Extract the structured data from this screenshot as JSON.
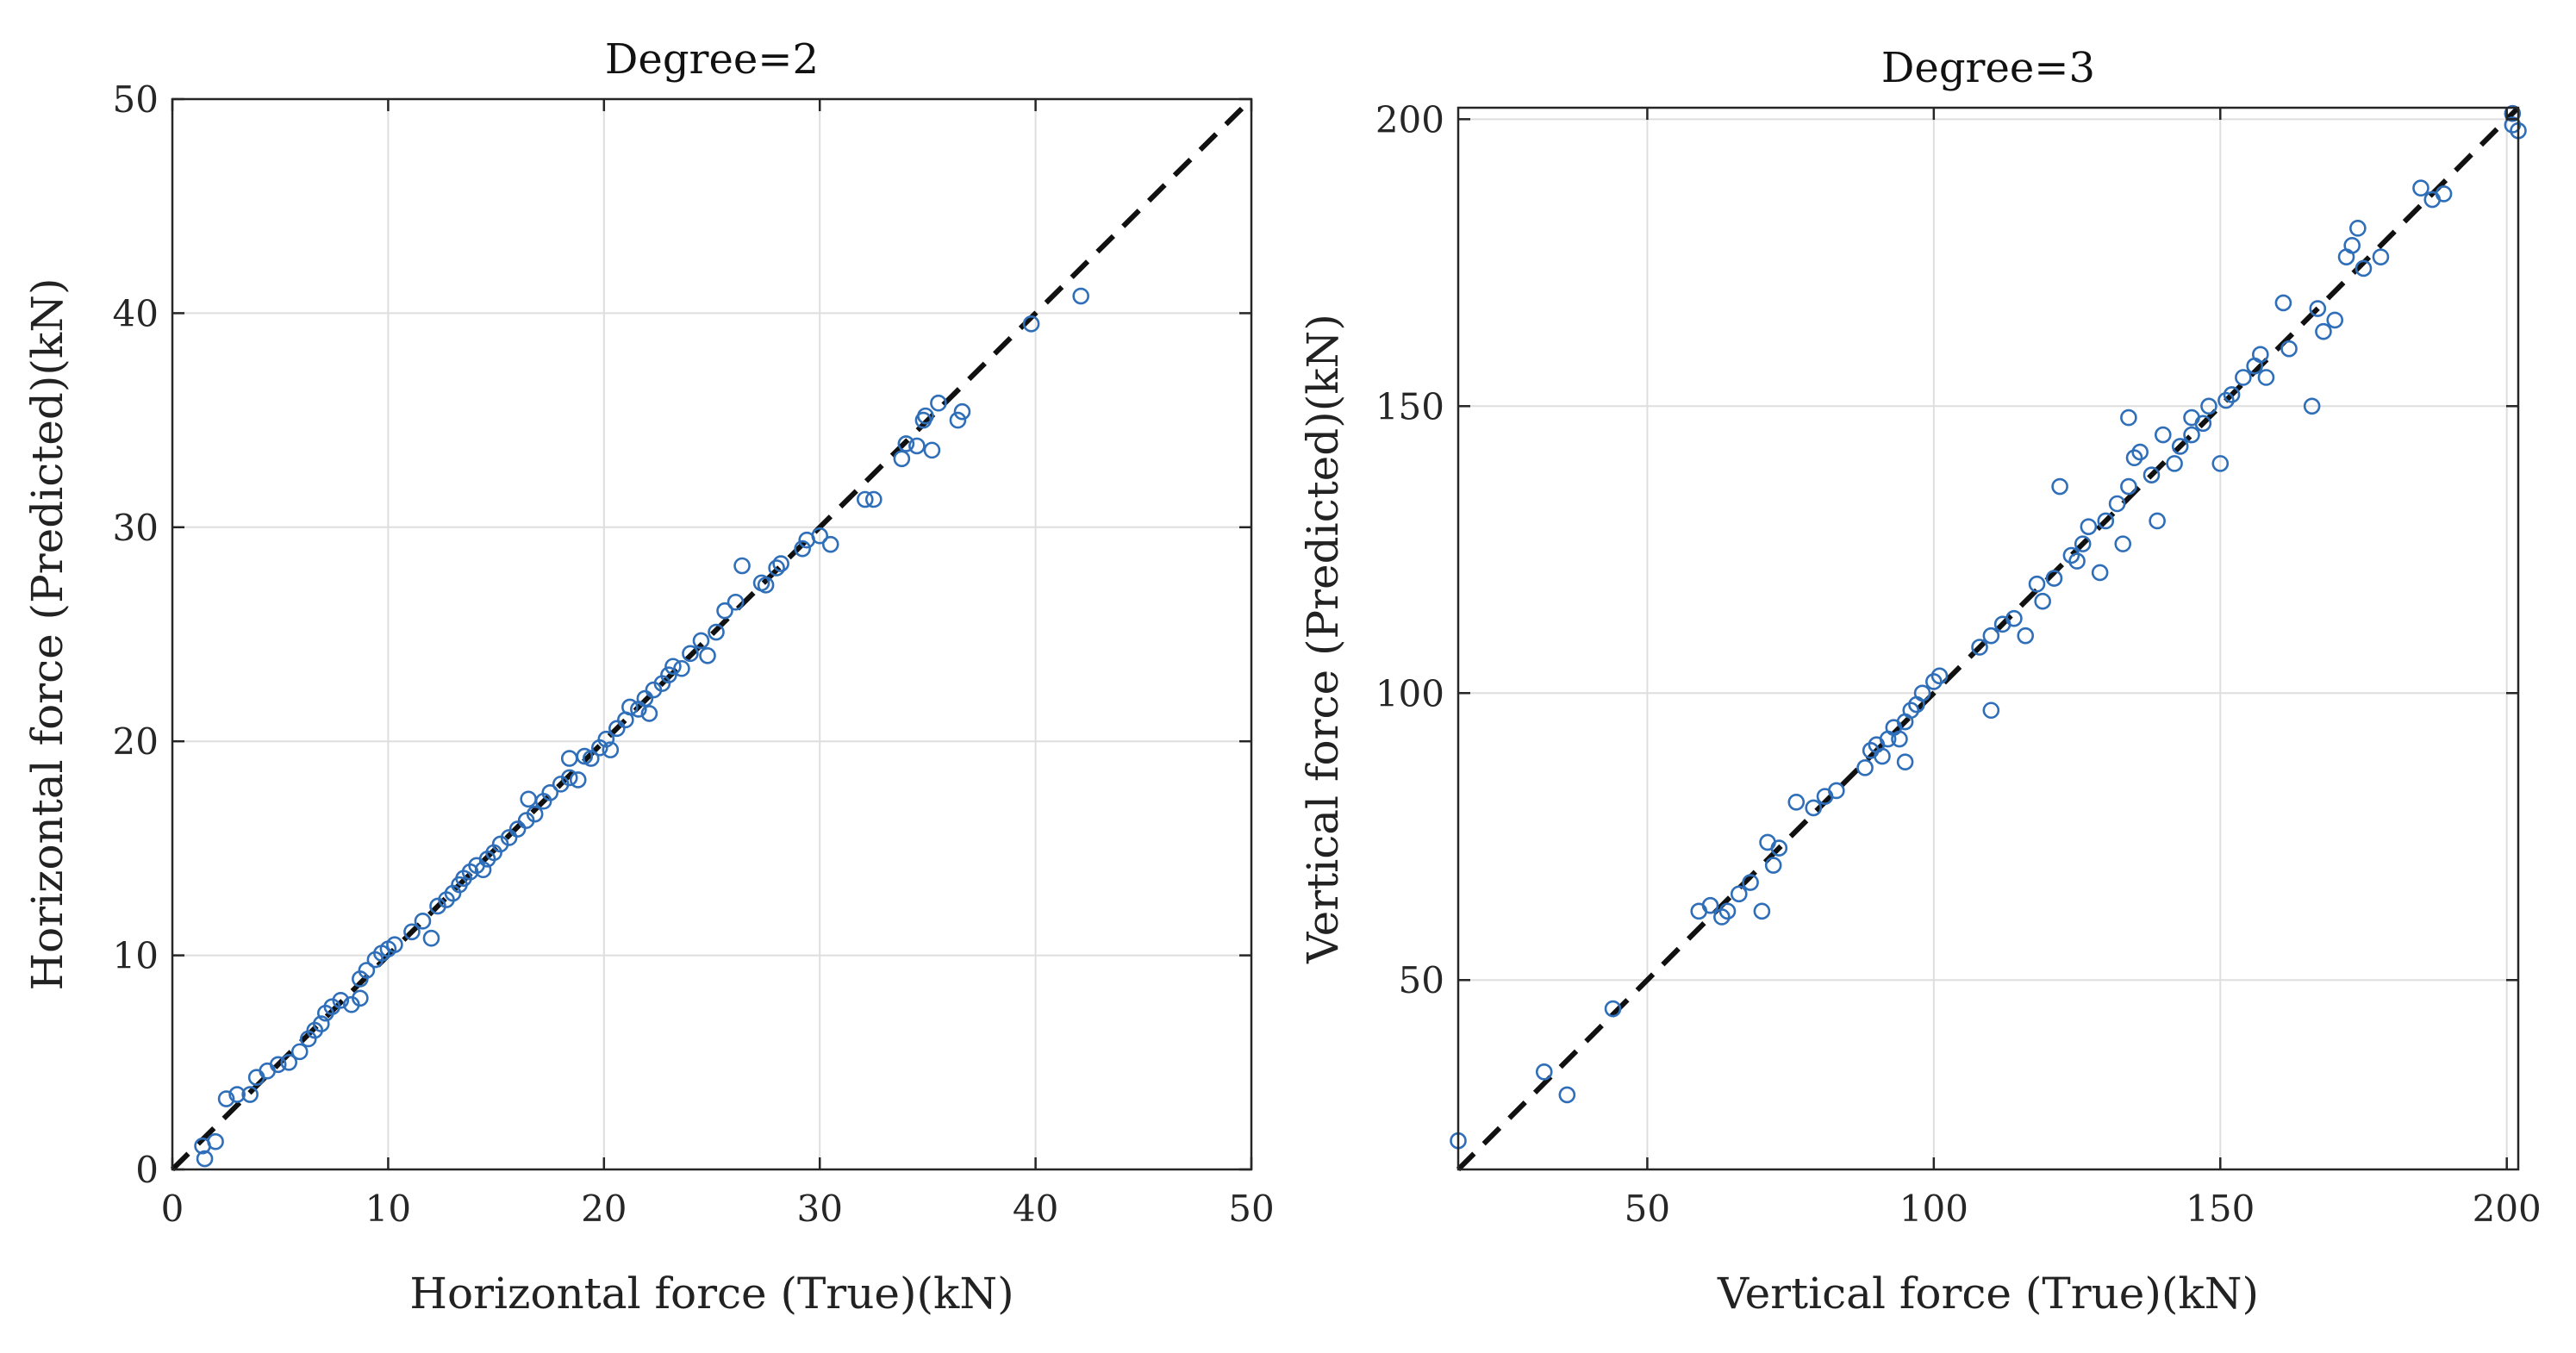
{
  "chart_data": [
    {
      "type": "scatter",
      "title": "Degree=2",
      "xlabel": "Horizontal force (True)(kN)",
      "ylabel": "Horizontal force (Predicted)(kN)",
      "xlim": [
        0,
        50
      ],
      "ylim": [
        0,
        50
      ],
      "xticks": [
        0,
        10,
        20,
        30,
        40,
        50
      ],
      "yticks": [
        0,
        10,
        20,
        30,
        40,
        50
      ],
      "grid": true,
      "reference_line": "y = x (dashed, black)",
      "marker_color": "#2f6eb8",
      "points": [
        [
          1.5,
          0.5
        ],
        [
          1.4,
          1.1
        ],
        [
          2.0,
          1.3
        ],
        [
          2.5,
          3.3
        ],
        [
          3.0,
          3.5
        ],
        [
          3.6,
          3.5
        ],
        [
          3.9,
          4.3
        ],
        [
          4.4,
          4.6
        ],
        [
          4.9,
          4.9
        ],
        [
          5.4,
          5.0
        ],
        [
          5.9,
          5.5
        ],
        [
          6.3,
          6.1
        ],
        [
          6.6,
          6.5
        ],
        [
          6.9,
          6.8
        ],
        [
          7.1,
          7.3
        ],
        [
          7.4,
          7.6
        ],
        [
          7.8,
          7.9
        ],
        [
          8.3,
          7.7
        ],
        [
          8.7,
          8.0
        ],
        [
          8.7,
          8.9
        ],
        [
          9.0,
          9.3
        ],
        [
          9.4,
          9.8
        ],
        [
          9.7,
          10.1
        ],
        [
          10.0,
          10.3
        ],
        [
          10.3,
          10.5
        ],
        [
          11.1,
          11.1
        ],
        [
          11.6,
          11.6
        ],
        [
          12.0,
          10.8
        ],
        [
          12.3,
          12.3
        ],
        [
          12.7,
          12.6
        ],
        [
          13.0,
          12.9
        ],
        [
          13.3,
          13.3
        ],
        [
          13.5,
          13.6
        ],
        [
          13.8,
          13.9
        ],
        [
          14.1,
          14.2
        ],
        [
          14.4,
          14.0
        ],
        [
          14.6,
          14.5
        ],
        [
          14.9,
          14.8
        ],
        [
          15.2,
          15.2
        ],
        [
          15.6,
          15.5
        ],
        [
          16.0,
          15.9
        ],
        [
          16.4,
          16.3
        ],
        [
          16.5,
          17.3
        ],
        [
          16.8,
          16.6
        ],
        [
          17.2,
          17.2
        ],
        [
          17.5,
          17.6
        ],
        [
          18.0,
          18.0
        ],
        [
          18.4,
          18.3
        ],
        [
          18.4,
          19.2
        ],
        [
          18.8,
          18.2
        ],
        [
          19.1,
          19.3
        ],
        [
          19.4,
          19.2
        ],
        [
          19.8,
          19.7
        ],
        [
          20.1,
          20.1
        ],
        [
          20.3,
          19.6
        ],
        [
          20.6,
          20.6
        ],
        [
          21.0,
          21.0
        ],
        [
          21.2,
          21.6
        ],
        [
          21.6,
          21.5
        ],
        [
          21.9,
          22.0
        ],
        [
          22.1,
          21.3
        ],
        [
          22.3,
          22.4
        ],
        [
          22.7,
          22.7
        ],
        [
          23.0,
          23.1
        ],
        [
          23.2,
          23.5
        ],
        [
          23.6,
          23.4
        ],
        [
          24.0,
          24.1
        ],
        [
          24.5,
          24.7
        ],
        [
          24.8,
          24.0
        ],
        [
          25.2,
          25.1
        ],
        [
          25.6,
          26.1
        ],
        [
          26.1,
          26.5
        ],
        [
          26.4,
          28.2
        ],
        [
          27.3,
          27.4
        ],
        [
          27.5,
          27.3
        ],
        [
          28.0,
          28.1
        ],
        [
          28.2,
          28.3
        ],
        [
          29.2,
          29.0
        ],
        [
          29.4,
          29.4
        ],
        [
          30.0,
          29.6
        ],
        [
          30.5,
          29.2
        ],
        [
          32.1,
          31.3
        ],
        [
          32.5,
          31.3
        ],
        [
          33.8,
          33.2
        ],
        [
          34.0,
          33.9
        ],
        [
          34.5,
          33.8
        ],
        [
          34.8,
          35.0
        ],
        [
          34.9,
          35.2
        ],
        [
          35.2,
          33.6
        ],
        [
          35.5,
          35.8
        ],
        [
          36.6,
          35.4
        ],
        [
          36.4,
          35.0
        ],
        [
          39.8,
          39.5
        ],
        [
          42.1,
          40.8
        ]
      ]
    },
    {
      "type": "scatter",
      "title": "Degree=3",
      "xlabel": "Vertical force (True)(kN)",
      "ylabel": "Vertical force (Predicted)(kN)",
      "xlim": [
        17,
        202
      ],
      "ylim": [
        17,
        202
      ],
      "xticks": [
        50,
        100,
        150,
        200
      ],
      "yticks": [
        50,
        100,
        150,
        200
      ],
      "grid": true,
      "reference_line": "y = x (dashed, black)",
      "marker_color": "#2f6eb8",
      "points": [
        [
          17,
          22
        ],
        [
          32,
          34
        ],
        [
          36,
          30
        ],
        [
          44,
          45
        ],
        [
          59,
          62
        ],
        [
          61,
          63
        ],
        [
          63,
          61
        ],
        [
          64,
          62
        ],
        [
          66,
          65
        ],
        [
          68,
          67
        ],
        [
          70,
          62
        ],
        [
          71,
          74
        ],
        [
          73,
          73
        ],
        [
          72,
          70
        ],
        [
          76,
          81
        ],
        [
          79,
          80
        ],
        [
          81,
          82
        ],
        [
          83,
          83
        ],
        [
          88,
          87
        ],
        [
          89,
          90
        ],
        [
          90,
          91
        ],
        [
          91,
          89
        ],
        [
          92,
          92
        ],
        [
          93,
          94
        ],
        [
          94,
          92
        ],
        [
          95,
          95
        ],
        [
          96,
          97
        ],
        [
          97,
          98
        ],
        [
          95,
          88
        ],
        [
          98,
          100
        ],
        [
          100,
          102
        ],
        [
          101,
          103
        ],
        [
          108,
          108
        ],
        [
          110,
          97
        ],
        [
          110,
          110
        ],
        [
          112,
          112
        ],
        [
          114,
          113
        ],
        [
          116,
          110
        ],
        [
          118,
          119
        ],
        [
          119,
          116
        ],
        [
          121,
          120
        ],
        [
          122,
          136
        ],
        [
          124,
          124
        ],
        [
          125,
          123
        ],
        [
          126,
          126
        ],
        [
          127,
          129
        ],
        [
          129,
          121
        ],
        [
          130,
          130
        ],
        [
          132,
          133
        ],
        [
          133,
          126
        ],
        [
          134,
          136
        ],
        [
          134,
          148
        ],
        [
          135,
          141
        ],
        [
          136,
          142
        ],
        [
          138,
          138
        ],
        [
          139,
          130
        ],
        [
          140,
          145
        ],
        [
          142,
          140
        ],
        [
          143,
          143
        ],
        [
          145,
          145
        ],
        [
          145,
          148
        ],
        [
          147,
          147
        ],
        [
          148,
          150
        ],
        [
          150,
          140
        ],
        [
          151,
          151
        ],
        [
          152,
          152
        ],
        [
          154,
          155
        ],
        [
          156,
          157
        ],
        [
          157,
          159
        ],
        [
          158,
          155
        ],
        [
          161,
          168
        ],
        [
          162,
          160
        ],
        [
          166,
          150
        ],
        [
          167,
          167
        ],
        [
          168,
          163
        ],
        [
          170,
          165
        ],
        [
          172,
          176
        ],
        [
          173,
          178
        ],
        [
          174,
          181
        ],
        [
          175,
          174
        ],
        [
          178,
          176
        ],
        [
          185,
          188
        ],
        [
          187,
          186
        ],
        [
          189,
          187
        ],
        [
          201,
          201
        ],
        [
          202,
          198
        ],
        [
          201,
          199
        ]
      ]
    }
  ]
}
